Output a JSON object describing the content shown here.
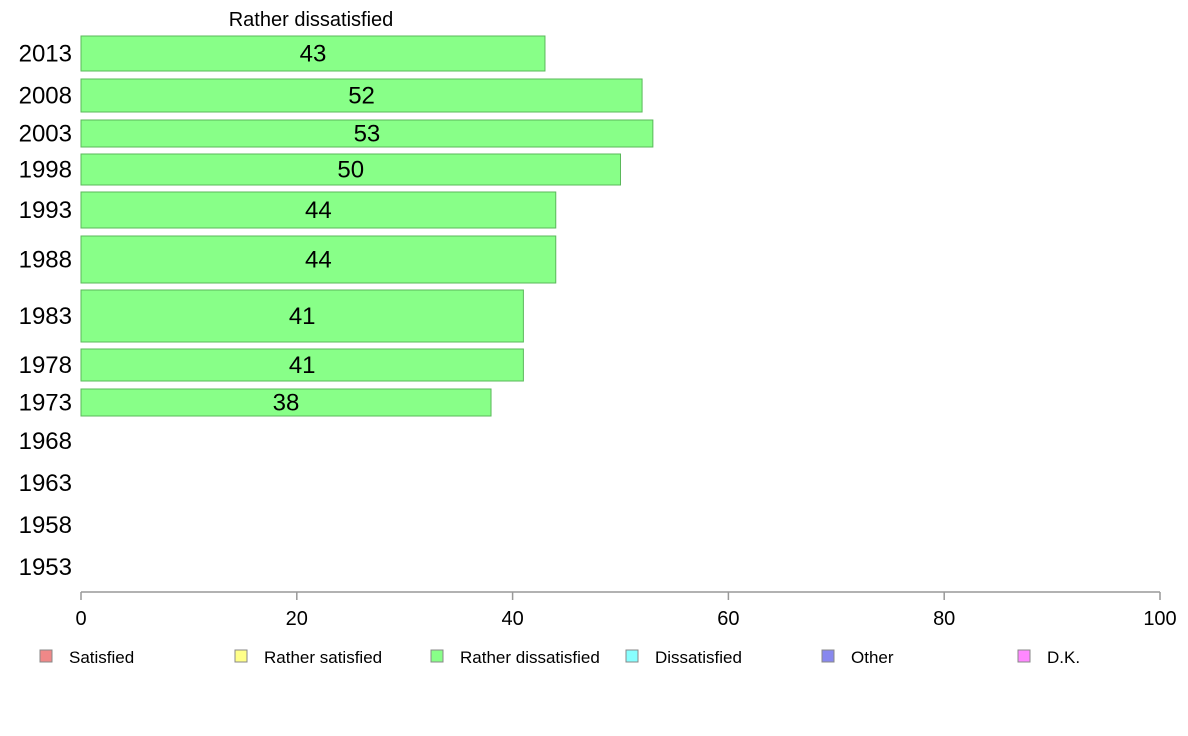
{
  "chart_data": {
    "type": "bar",
    "orientation": "horizontal",
    "title": "Rather dissatisfied",
    "categories": [
      "2013",
      "2008",
      "2003",
      "1998",
      "1993",
      "1988",
      "1983",
      "1978",
      "1973",
      "1968",
      "1963",
      "1958",
      "1953"
    ],
    "series": [
      {
        "name": "Rather dissatisfied",
        "color": "#88ff88",
        "values": [
          43,
          52,
          53,
          50,
          44,
          44,
          41,
          41,
          38,
          null,
          null,
          null,
          null
        ],
        "labels": [
          "43",
          "52",
          "53",
          "50",
          "44",
          "44",
          "41",
          "41",
          "38",
          "",
          "",
          "",
          ""
        ]
      }
    ],
    "xlim": [
      0,
      100
    ],
    "xticks": [
      "0",
      "20",
      "40",
      "60",
      "80",
      "100"
    ],
    "grid": false,
    "legend_position": "bottom",
    "legend": [
      {
        "name": "Satisfied",
        "color": "#f08888"
      },
      {
        "name": "Rather satisfied",
        "color": "#ffff88"
      },
      {
        "name": "Rather dissatisfied",
        "color": "#88ff88"
      },
      {
        "name": "Dissatisfied",
        "color": "#88ffff"
      },
      {
        "name": "Other",
        "color": "#8888ee"
      },
      {
        "name": "D.K.",
        "color": "#ff88ff"
      }
    ]
  }
}
